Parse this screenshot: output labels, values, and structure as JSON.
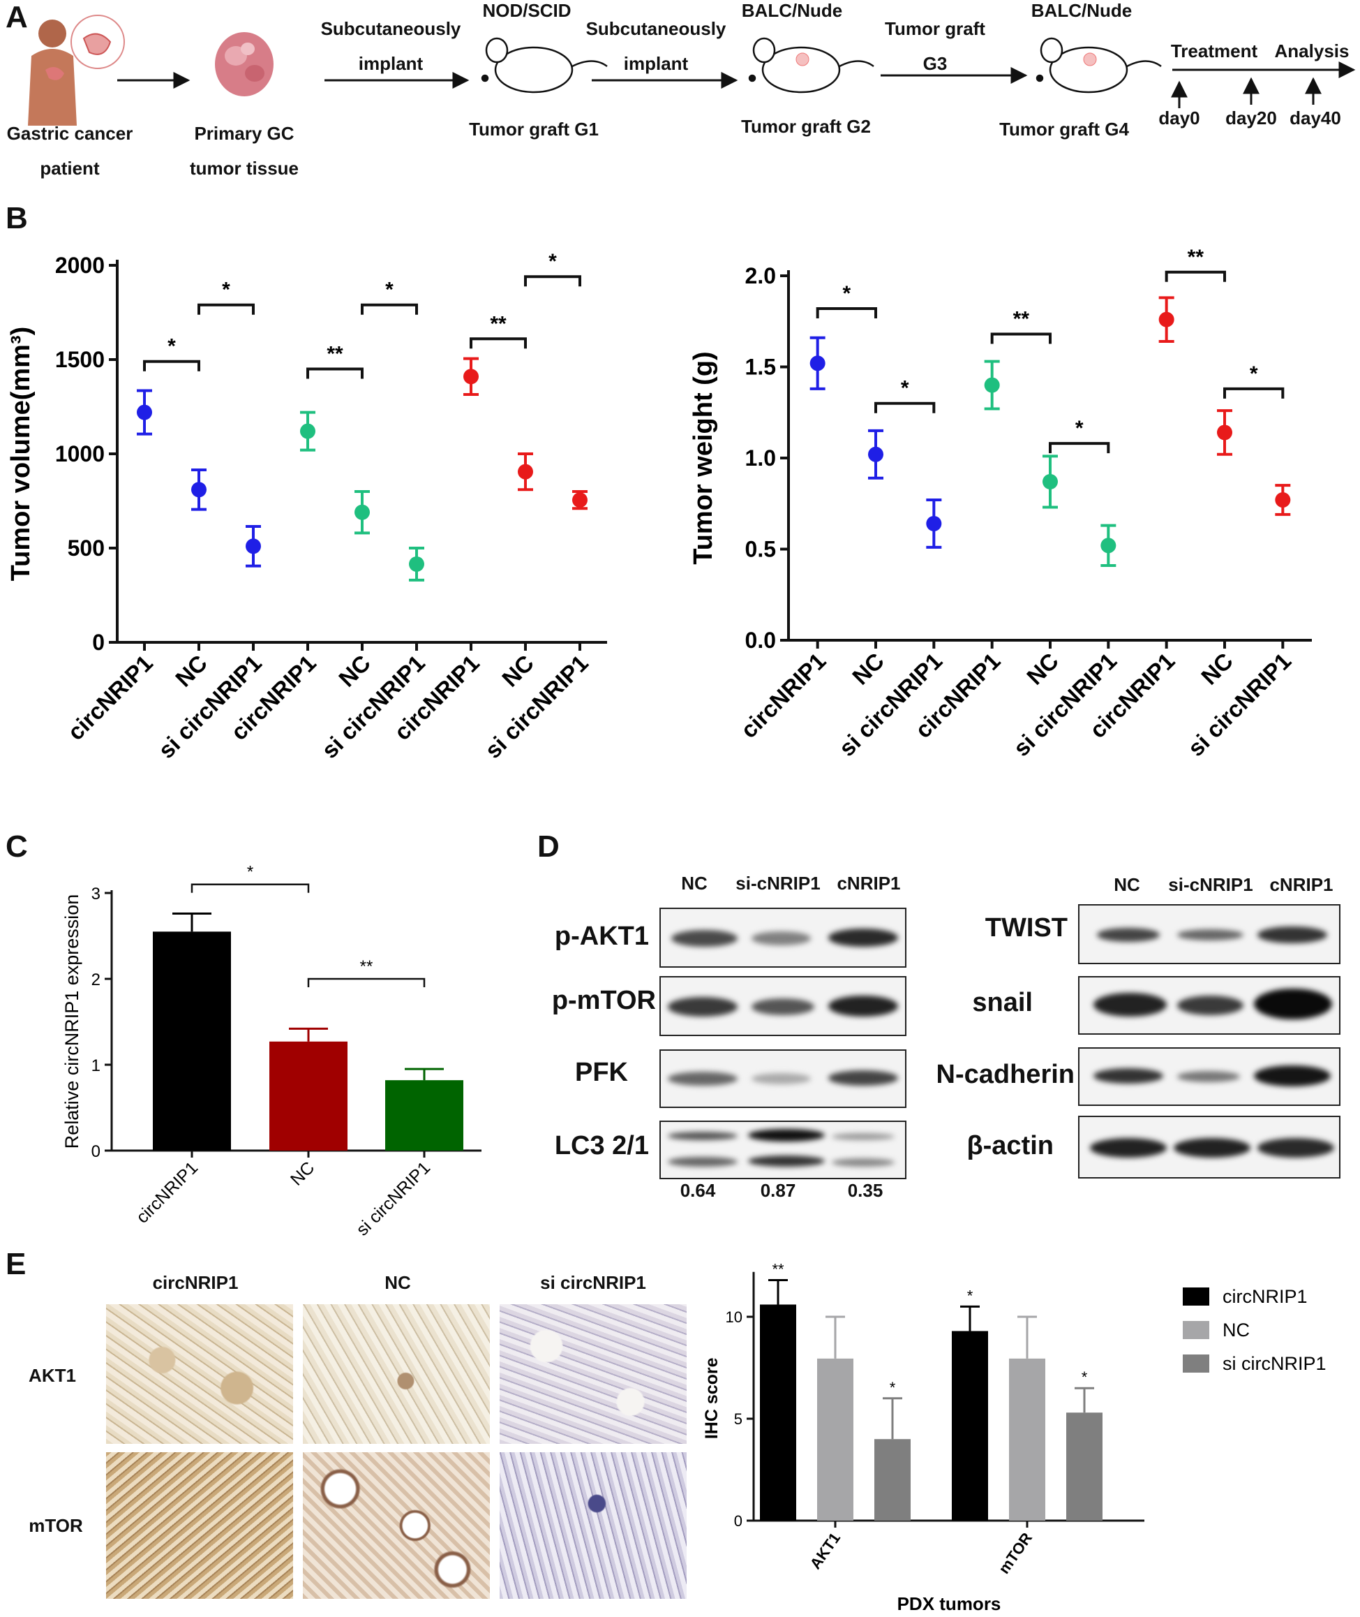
{
  "panels": {
    "a": "A",
    "b": "B",
    "c": "C",
    "d": "D",
    "e": "E"
  },
  "colors": {
    "blue": "#1f1fe6",
    "green": "#1fbf7f",
    "red": "#e81a1a",
    "black": "#000000",
    "darkred": "#a00000",
    "darkgreen": "#006400",
    "lightgray": "#a6a6a8",
    "midgray": "#7f7f7f"
  },
  "panelA": {
    "patient_l1": "Gastric cancer",
    "patient_l2": "patient",
    "tissue_l1": "Primary GC",
    "tissue_l2": "tumor tissue",
    "arrow1_top": "Subcutaneously",
    "arrow1_bot": "implant",
    "mouse1_top": "NOD/SCID",
    "mouse1_bot": "Tumor graft G1",
    "arrow2_top": "Subcutaneously",
    "arrow2_bot": "implant",
    "mouse2_top": "BALC/Nude",
    "mouse2_bot": "Tumor graft G2",
    "arrow3_top": "Tumor graft",
    "arrow3_bot": "G3",
    "mouse3_top": "BALC/Nude",
    "mouse3_bot": "Tumor graft G4",
    "timeline_treat": "Treatment",
    "timeline_analysis": "Analysis",
    "day0": "day0",
    "day20": "day20",
    "day40": "day40"
  },
  "panelD": {
    "cols": [
      "NC",
      "si-cNRIP1",
      "cNRIP1"
    ],
    "left_rows": [
      "p-AKT1",
      "p-mTOR",
      "PFK",
      "LC3 2/1"
    ],
    "right_rows": [
      "TWIST",
      "snail",
      "N-cadherin",
      "β-actin"
    ],
    "lc3_ratios": [
      "0.64",
      "0.87",
      "0.35"
    ]
  },
  "panelE": {
    "col_headers": [
      "circNRIP1",
      "NC",
      "si circNRIP1"
    ],
    "row_headers": [
      "AKT1",
      "mTOR"
    ]
  },
  "chart_data": [
    {
      "id": "B-volume",
      "type": "scatter",
      "ylabel": "Tumor volume(mm³)",
      "ylim": [
        0,
        2000
      ],
      "yticks": [
        0,
        500,
        1000,
        1500,
        2000
      ],
      "categories": [
        "circNRIP1",
        "NC",
        "si circNRIP1",
        "circNRIP1",
        "NC",
        "si circNRIP1",
        "circNRIP1",
        "NC",
        "si circNRIP1"
      ],
      "series": [
        {
          "name": "group1",
          "color": "blue",
          "mean": [
            1220,
            810,
            510
          ],
          "err": [
            115,
            105,
            105
          ]
        },
        {
          "name": "group2",
          "color": "green",
          "mean": [
            1120,
            690,
            415
          ],
          "err": [
            100,
            110,
            85
          ]
        },
        {
          "name": "group3",
          "color": "red",
          "mean": [
            1410,
            905,
            755
          ],
          "err": [
            95,
            95,
            45
          ]
        }
      ],
      "significance": [
        {
          "from": 0,
          "to": 1,
          "y": 1490,
          "label": "*"
        },
        {
          "from": 1,
          "to": 2,
          "y": 1790,
          "label": "*"
        },
        {
          "from": 3,
          "to": 4,
          "y": 1450,
          "label": "**"
        },
        {
          "from": 4,
          "to": 5,
          "y": 1790,
          "label": "*"
        },
        {
          "from": 6,
          "to": 7,
          "y": 1610,
          "label": "**"
        },
        {
          "from": 7,
          "to": 8,
          "y": 1940,
          "label": "*"
        }
      ]
    },
    {
      "id": "B-weight",
      "type": "scatter",
      "ylabel": "Tumor weight (g)",
      "ylim": [
        0,
        2.0
      ],
      "yticks": [
        "0.0",
        "0.5",
        "1.0",
        "1.5",
        "2.0"
      ],
      "categories": [
        "circNRIP1",
        "NC",
        "si circNRIP1",
        "circNRIP1",
        "NC",
        "si circNRIP1",
        "circNRIP1",
        "NC",
        "si circNRIP1"
      ],
      "series": [
        {
          "name": "group1",
          "color": "blue",
          "mean": [
            1.52,
            1.02,
            0.64
          ],
          "err": [
            0.14,
            0.13,
            0.13
          ]
        },
        {
          "name": "group2",
          "color": "green",
          "mean": [
            1.4,
            0.87,
            0.52
          ],
          "err": [
            0.13,
            0.14,
            0.11
          ]
        },
        {
          "name": "group3",
          "color": "red",
          "mean": [
            1.76,
            1.14,
            0.77
          ],
          "err": [
            0.12,
            0.12,
            0.08
          ]
        }
      ],
      "significance": [
        {
          "from": 0,
          "to": 1,
          "y": 1.82,
          "label": "*"
        },
        {
          "from": 1,
          "to": 2,
          "y": 1.3,
          "label": "*"
        },
        {
          "from": 3,
          "to": 4,
          "y": 1.68,
          "label": "**"
        },
        {
          "from": 4,
          "to": 5,
          "y": 1.08,
          "label": "*"
        },
        {
          "from": 6,
          "to": 7,
          "y": 2.02,
          "label": "**"
        },
        {
          "from": 7,
          "to": 8,
          "y": 1.38,
          "label": "*"
        }
      ]
    },
    {
      "id": "C",
      "type": "bar",
      "ylabel": "Relative circNRIP1 expression",
      "ylim": [
        0,
        3
      ],
      "yticks": [
        "0",
        "1",
        "2",
        "3"
      ],
      "categories": [
        "circNRIP1",
        "NC",
        "si circNRIP1"
      ],
      "values": [
        2.55,
        1.27,
        0.82
      ],
      "err": [
        0.21,
        0.15,
        0.13
      ],
      "colors": [
        "black",
        "darkred",
        "darkgreen"
      ],
      "significance": [
        {
          "from": 0,
          "to": 1,
          "y": 3.1,
          "label": "*"
        },
        {
          "from": 1,
          "to": 2,
          "y": 2.0,
          "label": "**"
        }
      ]
    },
    {
      "id": "E-ihc",
      "type": "bar",
      "ylabel": "IHC score",
      "xlabel": "PDX tumors",
      "ylim": [
        0,
        12
      ],
      "yticks": [
        "0",
        "5",
        "10"
      ],
      "categories": [
        "AKT1",
        "mTOR"
      ],
      "series": [
        {
          "name": "circNRIP1",
          "color": "black",
          "values": [
            10.6,
            9.3
          ],
          "err": [
            1.2,
            1.2
          ],
          "sig": [
            "**",
            "*"
          ]
        },
        {
          "name": "NC",
          "color": "lightgray",
          "values": [
            7.95,
            7.95
          ],
          "err": [
            2.05,
            2.05
          ],
          "sig": [
            "",
            ""
          ]
        },
        {
          "name": "si circNRIP1",
          "color": "midgray",
          "values": [
            4.0,
            5.3
          ],
          "err": [
            2.0,
            1.2
          ],
          "sig": [
            "*",
            "*"
          ]
        }
      ],
      "legend": "top-right"
    }
  ]
}
